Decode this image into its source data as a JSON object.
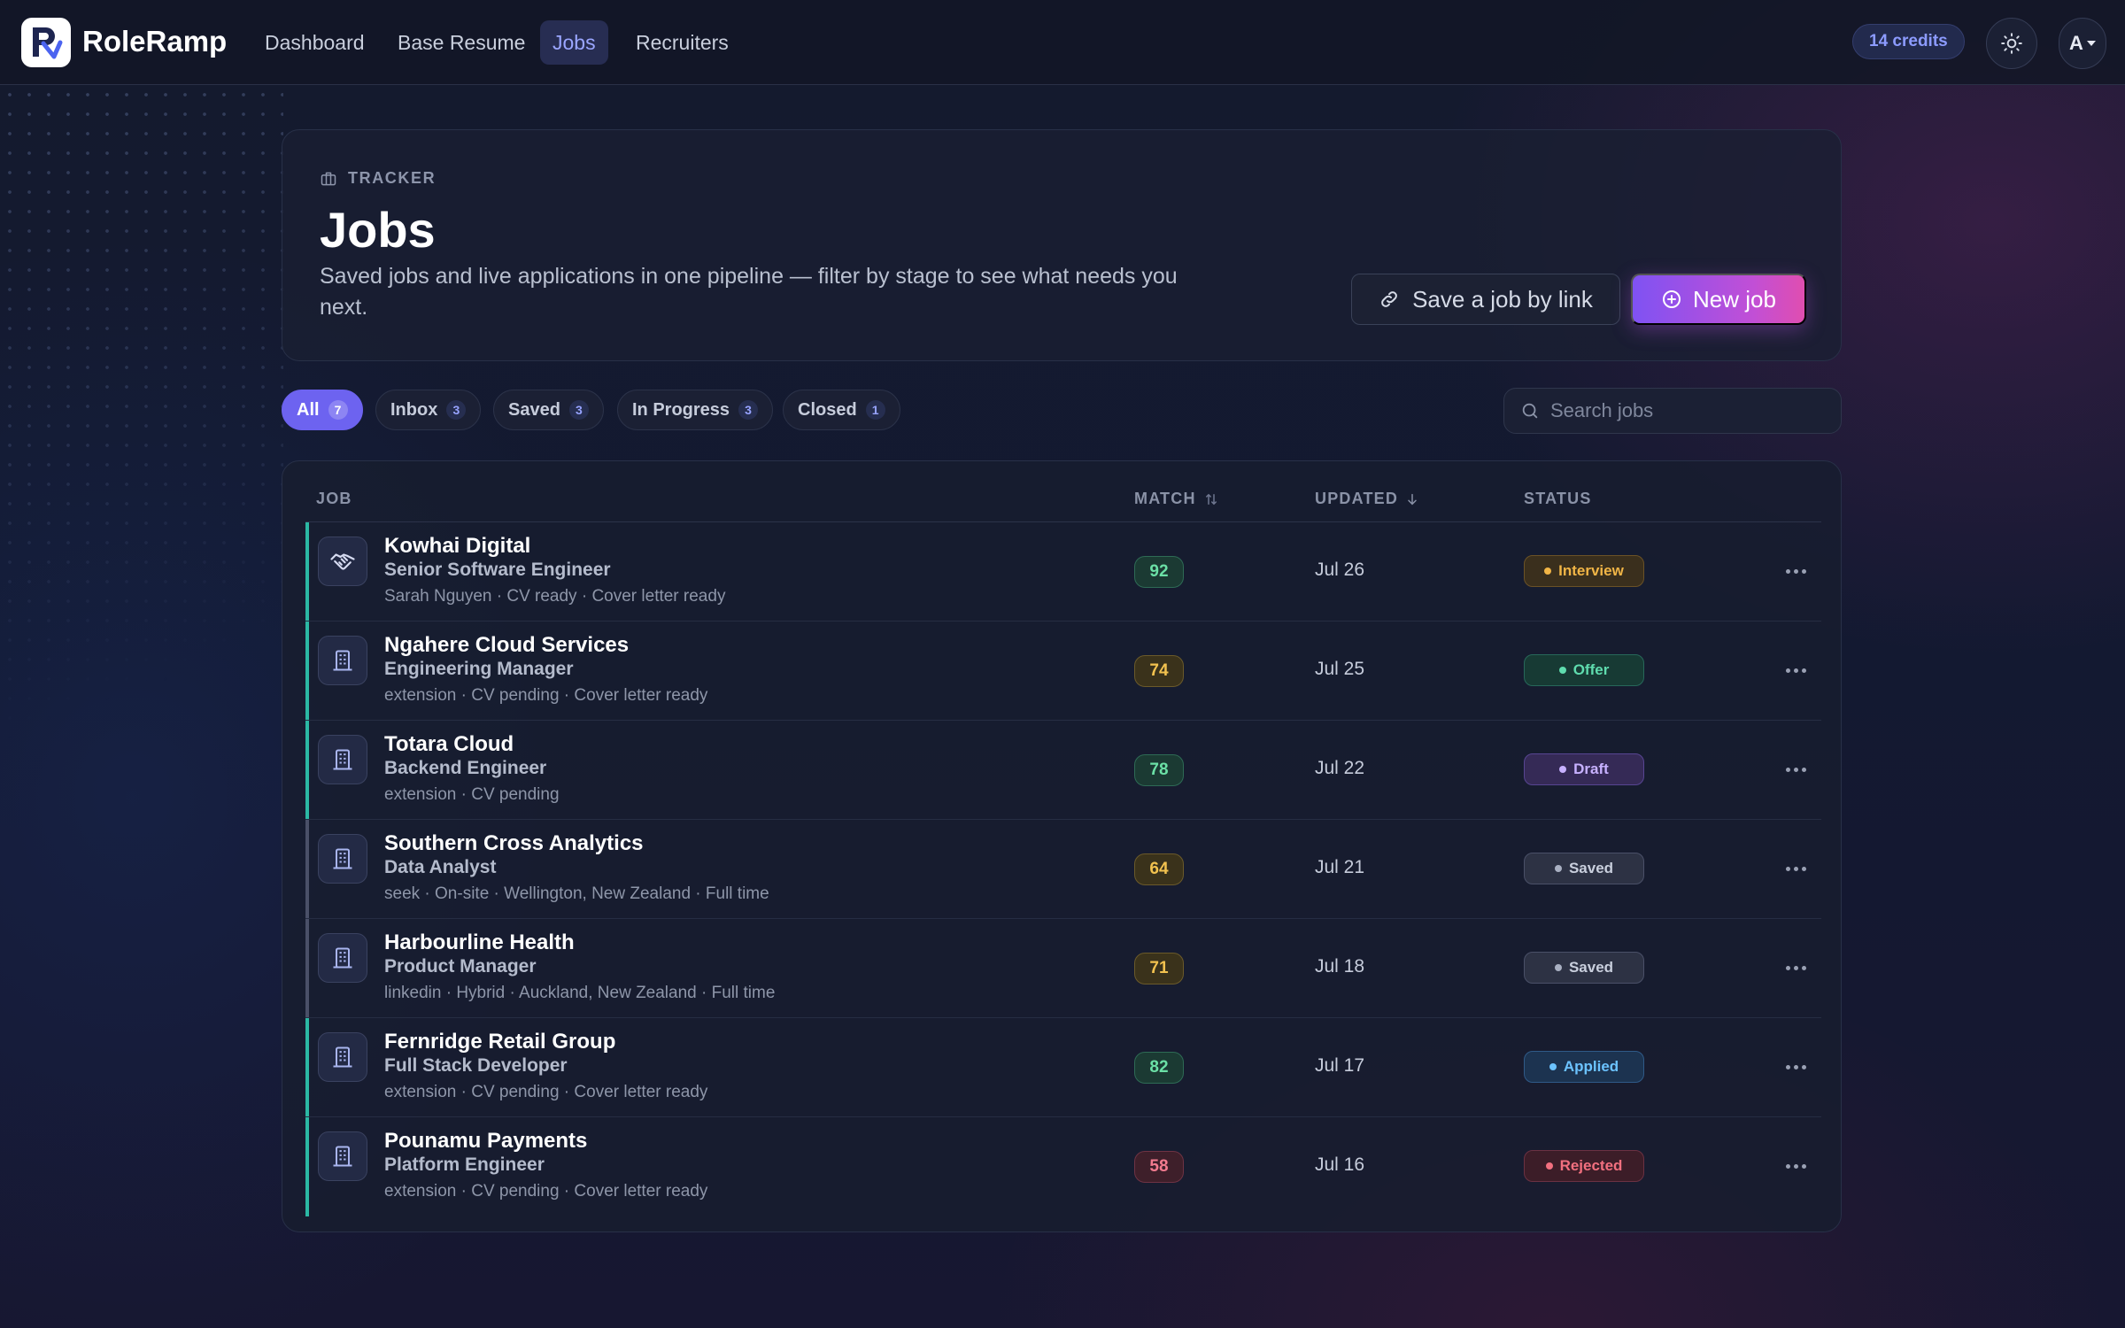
{
  "app": {
    "name": "RoleRamp",
    "nav": [
      {
        "label": "Dashboard"
      },
      {
        "label": "Base Resume"
      },
      {
        "label": "Jobs",
        "active": true
      },
      {
        "label": "Recruiters"
      }
    ],
    "credits": "14 credits",
    "account_initial": "A"
  },
  "header": {
    "eyebrow": "TRACKER",
    "title": "Jobs",
    "description": "Saved jobs and live applications in one pipeline — filter by stage to see what needs you next.",
    "save_link_label": "Save a job by link",
    "new_job_label": "New job"
  },
  "filters": [
    {
      "label": "All",
      "count": "7",
      "active": true
    },
    {
      "label": "Inbox",
      "count": "3"
    },
    {
      "label": "Saved",
      "count": "3"
    },
    {
      "label": "In Progress",
      "count": "3"
    },
    {
      "label": "Closed",
      "count": "1"
    }
  ],
  "search": {
    "placeholder": "Search jobs",
    "value": ""
  },
  "table": {
    "columns": {
      "job": "JOB",
      "match": "MATCH",
      "updated": "UPDATED",
      "status": "STATUS"
    },
    "rows": [
      {
        "company": "Kowhai Digital",
        "role": "Senior Software Engineer",
        "meta": "Sarah Nguyen · CV ready · Cover letter ready",
        "match": "92",
        "updated": "Jul 26",
        "status": "Interview",
        "icon": "handshake-icon"
      },
      {
        "company": "Ngahere Cloud Services",
        "role": "Engineering Manager",
        "meta": "extension · CV pending · Cover letter ready",
        "match": "74",
        "updated": "Jul 25",
        "status": "Offer",
        "icon": "building-icon"
      },
      {
        "company": "Totara Cloud",
        "role": "Backend Engineer",
        "meta": "extension · CV pending",
        "match": "78",
        "updated": "Jul 22",
        "status": "Draft",
        "icon": "building-icon"
      },
      {
        "company": "Southern Cross Analytics",
        "role": "Data Analyst",
        "meta": "seek · On-site · Wellington, New Zealand · Full time",
        "match": "64",
        "updated": "Jul 21",
        "status": "Saved",
        "icon": "building-icon"
      },
      {
        "company": "Harbourline Health",
        "role": "Product Manager",
        "meta": "linkedin · Hybrid · Auckland, New Zealand · Full time",
        "match": "71",
        "updated": "Jul 18",
        "status": "Saved",
        "icon": "building-icon"
      },
      {
        "company": "Fernridge Retail Group",
        "role": "Full Stack Developer",
        "meta": "extension · CV pending · Cover letter ready",
        "match": "82",
        "updated": "Jul 17",
        "status": "Applied",
        "icon": "building-icon"
      },
      {
        "company": "Pounamu Payments",
        "role": "Platform Engineer",
        "meta": "extension · CV pending · Cover letter ready",
        "match": "58",
        "updated": "Jul 16",
        "status": "Rejected",
        "icon": "building-icon"
      }
    ]
  },
  "colors": {
    "accent": "#7f52f3",
    "accent_pink": "#e04eb0",
    "row_accent_active": "#2bb8a4",
    "row_accent_muted": "#4a5068"
  }
}
